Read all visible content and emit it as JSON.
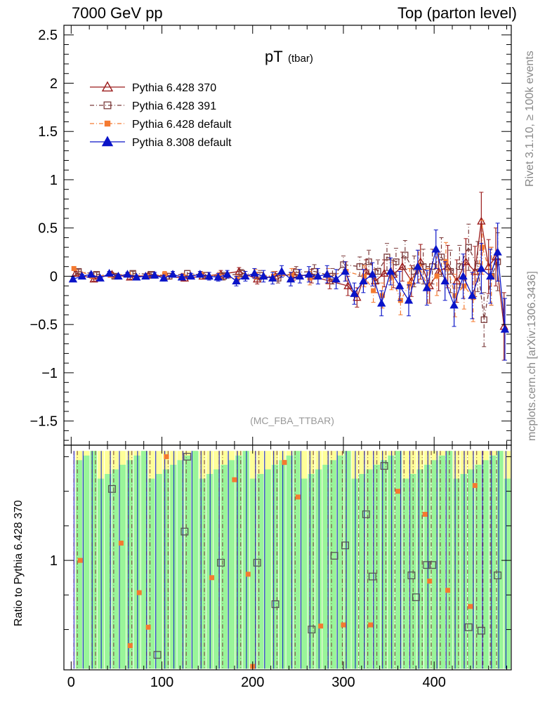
{
  "header": {
    "left": "7000 GeV pp",
    "right": "Top (parton level)"
  },
  "side_text": {
    "top": "Rivet 3.1.10, ≥ 100k events",
    "bottom": "mcplots.cern.ch [arXiv:1306.3436]"
  },
  "chart_data": [
    {
      "type": "scatter",
      "title": "pT",
      "subtitle": "(tbar)",
      "annotation": "(MC_FBA_TTBAR)",
      "xlim": [
        -8,
        485
      ],
      "ylim": [
        -1.75,
        2.6
      ],
      "xticks": [
        0,
        100,
        200,
        300,
        400
      ],
      "yticks": [
        -1.5,
        -1,
        -0.5,
        0,
        0.5,
        1,
        1.5,
        2,
        2.5
      ],
      "ytick_labels": [
        "−1.5",
        "−1",
        "−0.5",
        "0",
        "0.5",
        "1",
        "1.5",
        "2",
        "2.5"
      ],
      "legend_position": "top-left",
      "series": [
        {
          "name": "Pythia 6.428 370",
          "color": "#9b1b1b",
          "marker": "open-triangle",
          "line": "solid",
          "x": [
            5,
            25,
            45,
            65,
            85,
            105,
            125,
            145,
            165,
            185,
            205,
            225,
            245,
            265,
            285,
            305,
            315,
            325,
            335,
            345,
            355,
            365,
            375,
            385,
            395,
            405,
            415,
            425,
            435,
            445,
            452,
            460,
            468,
            477
          ],
          "y": [
            0.03,
            -0.03,
            0.02,
            -0.01,
            0.01,
            0.0,
            -0.02,
            0.0,
            0.02,
            0.05,
            -0.03,
            0.0,
            0.02,
            0.0,
            -0.05,
            -0.1,
            -0.22,
            0.05,
            -0.05,
            0.03,
            0.02,
            0.1,
            -0.05,
            0.15,
            -0.1,
            0.05,
            0.1,
            -0.05,
            0.15,
            0.05,
            0.57,
            0.1,
            0.2,
            -0.52
          ],
          "err": [
            0.02,
            0.02,
            0.02,
            0.02,
            0.02,
            0.03,
            0.03,
            0.03,
            0.04,
            0.04,
            0.05,
            0.05,
            0.06,
            0.07,
            0.08,
            0.1,
            0.1,
            0.12,
            0.12,
            0.14,
            0.14,
            0.15,
            0.16,
            0.18,
            0.18,
            0.2,
            0.22,
            0.22,
            0.24,
            0.26,
            0.3,
            0.28,
            0.3,
            0.35
          ]
        },
        {
          "name": "Pythia 6.428 391",
          "color": "#7a3a3a",
          "marker": "open-square",
          "line": "dash-dot",
          "x": [
            8,
            28,
            48,
            68,
            88,
            108,
            128,
            148,
            168,
            188,
            208,
            228,
            248,
            268,
            288,
            300,
            318,
            328,
            338,
            348,
            358,
            368,
            378,
            388,
            398,
            408,
            418,
            428,
            438,
            448,
            455,
            463,
            470
          ],
          "y": [
            0.05,
            0.02,
            0.0,
            0.03,
            0.02,
            0.0,
            0.03,
            0.01,
            0.0,
            0.03,
            0.01,
            -0.02,
            0.04,
            0.05,
            0.0,
            0.12,
            0.1,
            0.15,
            0.05,
            0.2,
            0.15,
            0.22,
            0.05,
            0.1,
            0.1,
            0.2,
            0.05,
            0.1,
            0.3,
            0.1,
            -0.45,
            0.0,
            0.15
          ],
          "err": [
            0.02,
            0.02,
            0.02,
            0.02,
            0.02,
            0.03,
            0.03,
            0.03,
            0.04,
            0.04,
            0.05,
            0.05,
            0.06,
            0.07,
            0.08,
            0.09,
            0.1,
            0.12,
            0.12,
            0.14,
            0.14,
            0.15,
            0.16,
            0.18,
            0.18,
            0.2,
            0.22,
            0.22,
            0.24,
            0.26,
            0.28,
            0.3,
            0.3
          ]
        },
        {
          "name": "Pythia 6.428 default",
          "color": "#f47a30",
          "marker": "filled-square",
          "line": "dash-dot",
          "x": [
            3,
            23,
            43,
            63,
            83,
            103,
            123,
            143,
            163,
            183,
            203,
            223,
            243,
            263,
            283,
            303,
            323,
            333,
            343,
            353,
            363,
            373,
            383,
            393,
            403,
            413,
            423,
            433,
            443,
            453,
            463
          ],
          "y": [
            0.08,
            0.0,
            0.01,
            0.02,
            0.0,
            0.02,
            0.0,
            0.02,
            0.0,
            -0.03,
            0.02,
            0.0,
            0.02,
            -0.02,
            0.0,
            0.05,
            0.0,
            -0.15,
            -0.2,
            0.0,
            -0.25,
            -0.08,
            0.1,
            -0.1,
            0.0,
            0.15,
            -0.2,
            -0.1,
            -0.22,
            0.3,
            0.0
          ],
          "err": [
            0.02,
            0.02,
            0.02,
            0.02,
            0.02,
            0.03,
            0.03,
            0.03,
            0.04,
            0.04,
            0.05,
            0.05,
            0.06,
            0.07,
            0.08,
            0.1,
            0.11,
            0.12,
            0.13,
            0.14,
            0.15,
            0.16,
            0.17,
            0.18,
            0.2,
            0.2,
            0.22,
            0.24,
            0.25,
            0.28,
            0.3
          ]
        },
        {
          "name": "Pythia 8.308 default",
          "color": "#0a14c8",
          "marker": "filled-triangle",
          "line": "solid",
          "x": [
            2,
            12,
            22,
            32,
            42,
            52,
            62,
            72,
            82,
            92,
            102,
            112,
            122,
            132,
            142,
            152,
            162,
            172,
            182,
            192,
            202,
            212,
            222,
            232,
            242,
            252,
            262,
            272,
            282,
            292,
            302,
            312,
            322,
            332,
            342,
            352,
            362,
            372,
            382,
            392,
            402,
            412,
            422,
            432,
            442,
            452,
            462,
            470,
            478
          ],
          "y": [
            -0.03,
            0.0,
            0.02,
            -0.02,
            0.03,
            0.0,
            0.02,
            -0.01,
            0.0,
            0.01,
            -0.02,
            0.02,
            -0.01,
            0.0,
            0.02,
            0.0,
            -0.01,
            0.02,
            -0.05,
            0.0,
            0.03,
            0.0,
            -0.02,
            0.05,
            -0.03,
            0.0,
            0.02,
            0.0,
            0.02,
            -0.03,
            0.05,
            -0.18,
            -0.05,
            0.02,
            -0.28,
            0.05,
            -0.1,
            -0.25,
            0.1,
            -0.12,
            0.28,
            -0.05,
            -0.3,
            0.0,
            -0.2,
            0.08,
            0.0,
            0.25,
            -0.55
          ],
          "err": [
            0.02,
            0.02,
            0.02,
            0.02,
            0.02,
            0.02,
            0.02,
            0.02,
            0.02,
            0.03,
            0.03,
            0.03,
            0.03,
            0.03,
            0.03,
            0.04,
            0.04,
            0.04,
            0.05,
            0.05,
            0.05,
            0.06,
            0.06,
            0.06,
            0.07,
            0.07,
            0.08,
            0.08,
            0.09,
            0.1,
            0.1,
            0.11,
            0.12,
            0.12,
            0.13,
            0.14,
            0.15,
            0.16,
            0.17,
            0.18,
            0.2,
            0.2,
            0.22,
            0.23,
            0.24,
            0.26,
            0.28,
            0.3,
            0.32
          ]
        }
      ]
    },
    {
      "type": "scatter",
      "ylabel": "Ratio to Pythia 6.428 370",
      "xlim": [
        -8,
        485
      ],
      "ylim": [
        0.05,
        2.0
      ],
      "xticks": [
        0,
        100,
        200,
        300,
        400
      ],
      "yticks": [
        1
      ],
      "ytick_labels": [
        "1"
      ],
      "ratio_points": {
        "Pythia 6.428 391": {
          "color": "#555555",
          "x": [
            45,
            95,
            125,
            128,
            165,
            205,
            225,
            265,
            290,
            302,
            325,
            332,
            345,
            375,
            380,
            392,
            398,
            438,
            452,
            470
          ],
          "y": [
            1.62,
            0.18,
            1.25,
            1.9,
            0.98,
            0.98,
            0.62,
            0.4,
            1.04,
            1.13,
            1.4,
            0.86,
            1.82,
            0.87,
            0.68,
            0.96,
            0.96,
            0.42,
            0.39,
            0.87
          ]
        },
        "Pythia 6.428 default": {
          "color": "#f47a30",
          "x": [
            10,
            55,
            65,
            75,
            85,
            105,
            155,
            180,
            195,
            200,
            235,
            250,
            275,
            300,
            330,
            360,
            390,
            395,
            415,
            440,
            445
          ],
          "y": [
            1.0,
            1.15,
            0.26,
            0.72,
            0.42,
            1.9,
            0.85,
            1.7,
            0.88,
            0.08,
            1.85,
            1.55,
            0.43,
            0.44,
            0.44,
            1.6,
            1.4,
            0.82,
            0.74,
            0.6,
            1.65
          ]
        }
      }
    }
  ]
}
